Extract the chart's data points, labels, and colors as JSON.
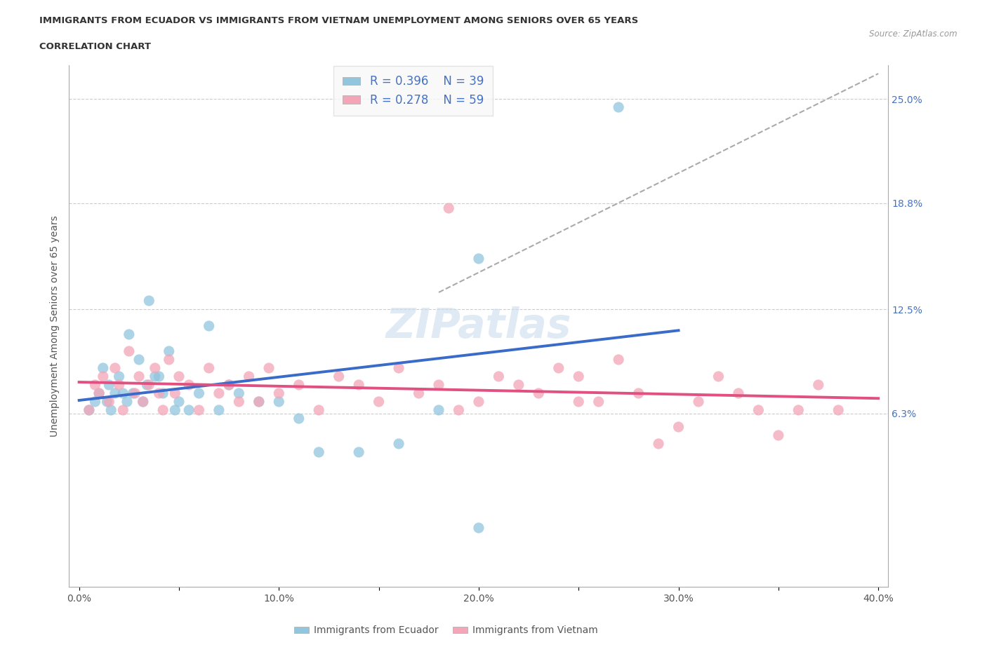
{
  "title_line1": "IMMIGRANTS FROM ECUADOR VS IMMIGRANTS FROM VIETNAM UNEMPLOYMENT AMONG SENIORS OVER 65 YEARS",
  "title_line2": "CORRELATION CHART",
  "source": "Source: ZipAtlas.com",
  "ylabel": "Unemployment Among Seniors over 65 years",
  "xlim": [
    -0.005,
    0.405
  ],
  "ylim": [
    -0.04,
    0.27
  ],
  "xtick_labels": [
    "0.0%",
    "",
    "10.0%",
    "",
    "20.0%",
    "",
    "30.0%",
    "",
    "40.0%"
  ],
  "xtick_vals": [
    0.0,
    0.05,
    0.1,
    0.15,
    0.2,
    0.25,
    0.3,
    0.35,
    0.4
  ],
  "right_ytick_vals": [
    0.063,
    0.125,
    0.188,
    0.25
  ],
  "right_ytick_labels": [
    "6.3%",
    "12.5%",
    "18.8%",
    "25.0%"
  ],
  "ecuador_color": "#92C5DE",
  "vietnam_color": "#F4A5B8",
  "ecuador_line_color": "#3A6BC9",
  "vietnam_line_color": "#E05080",
  "ecuador_R": 0.396,
  "ecuador_N": 39,
  "vietnam_R": 0.278,
  "vietnam_N": 59,
  "watermark": "ZIPatlas",
  "ecuador_scatter_x": [
    0.005,
    0.008,
    0.01,
    0.012,
    0.014,
    0.015,
    0.016,
    0.018,
    0.02,
    0.022,
    0.024,
    0.025,
    0.027,
    0.03,
    0.032,
    0.034,
    0.035,
    0.038,
    0.04,
    0.042,
    0.045,
    0.048,
    0.05,
    0.055,
    0.06,
    0.065,
    0.07,
    0.075,
    0.08,
    0.09,
    0.1,
    0.11,
    0.12,
    0.14,
    0.16,
    0.18,
    0.2,
    0.27,
    0.2
  ],
  "ecuador_scatter_y": [
    0.065,
    0.07,
    0.075,
    0.09,
    0.07,
    0.08,
    0.065,
    0.075,
    0.085,
    0.075,
    0.07,
    0.11,
    0.075,
    0.095,
    0.07,
    0.08,
    0.13,
    0.085,
    0.085,
    0.075,
    0.1,
    0.065,
    0.07,
    0.065,
    0.075,
    0.115,
    0.065,
    0.08,
    0.075,
    0.07,
    0.07,
    0.06,
    0.04,
    0.04,
    0.045,
    0.065,
    -0.005,
    0.245,
    0.155
  ],
  "vietnam_scatter_x": [
    0.005,
    0.008,
    0.01,
    0.012,
    0.015,
    0.018,
    0.02,
    0.022,
    0.025,
    0.028,
    0.03,
    0.032,
    0.035,
    0.038,
    0.04,
    0.042,
    0.045,
    0.048,
    0.05,
    0.055,
    0.06,
    0.065,
    0.07,
    0.075,
    0.08,
    0.085,
    0.09,
    0.095,
    0.1,
    0.11,
    0.12,
    0.13,
    0.14,
    0.15,
    0.16,
    0.17,
    0.18,
    0.19,
    0.2,
    0.21,
    0.22,
    0.23,
    0.24,
    0.25,
    0.26,
    0.27,
    0.28,
    0.29,
    0.3,
    0.31,
    0.32,
    0.33,
    0.34,
    0.35,
    0.36,
    0.37,
    0.38,
    0.185,
    0.25
  ],
  "vietnam_scatter_y": [
    0.065,
    0.08,
    0.075,
    0.085,
    0.07,
    0.09,
    0.08,
    0.065,
    0.1,
    0.075,
    0.085,
    0.07,
    0.08,
    0.09,
    0.075,
    0.065,
    0.095,
    0.075,
    0.085,
    0.08,
    0.065,
    0.09,
    0.075,
    0.08,
    0.07,
    0.085,
    0.07,
    0.09,
    0.075,
    0.08,
    0.065,
    0.085,
    0.08,
    0.07,
    0.09,
    0.075,
    0.08,
    0.065,
    0.07,
    0.085,
    0.08,
    0.075,
    0.09,
    0.085,
    0.07,
    0.095,
    0.075,
    0.045,
    0.055,
    0.07,
    0.085,
    0.075,
    0.065,
    0.05,
    0.065,
    0.08,
    0.065,
    0.185,
    0.07
  ],
  "grid_yvals": [
    0.063,
    0.125,
    0.188,
    0.25
  ],
  "dash_line_x": [
    0.18,
    0.4
  ],
  "dash_line_y": [
    0.135,
    0.265
  ]
}
